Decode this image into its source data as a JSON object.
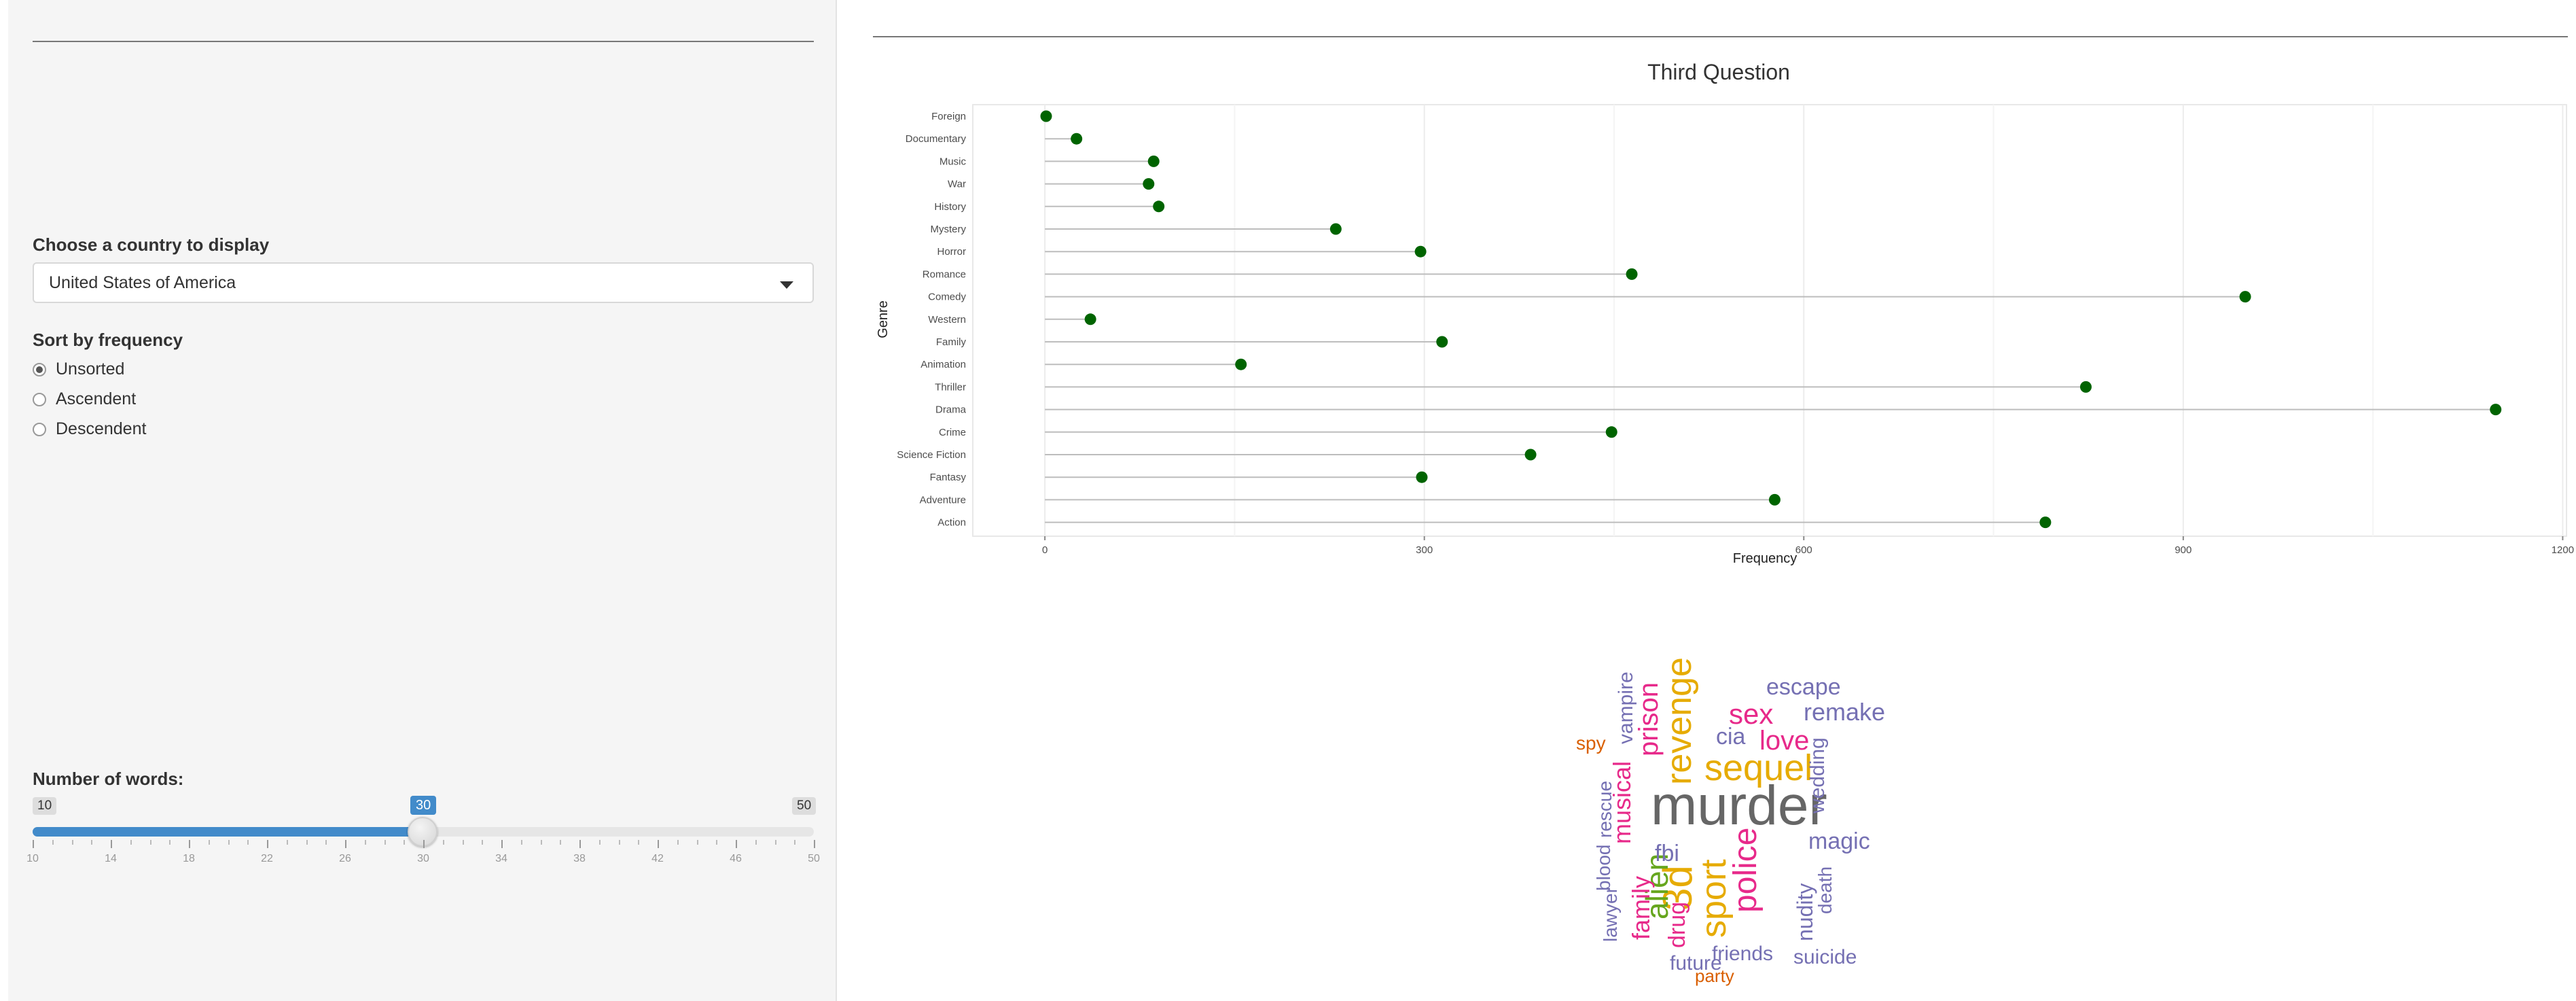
{
  "sidebar": {
    "country_label": "Choose a country to display",
    "country_value": "United States of America",
    "sort_label": "Sort by frequency",
    "sort_options": [
      {
        "label": "Unsorted",
        "selected": true
      },
      {
        "label": "Ascendent",
        "selected": false
      },
      {
        "label": "Descendent",
        "selected": false
      }
    ],
    "words_label": "Number of words:",
    "slider": {
      "min": 10,
      "max": 50,
      "value": 30,
      "min_label": "10",
      "max_label": "50",
      "value_label": "30",
      "tick_labels": [
        "10",
        "14",
        "18",
        "22",
        "26",
        "30",
        "34",
        "38",
        "42",
        "46",
        "50"
      ]
    }
  },
  "chart_data": {
    "type": "lollipop",
    "title": "Third Question",
    "xlabel": "Frequency",
    "ylabel": "Genre",
    "xlim": [
      -57,
      1203
    ],
    "xticks": [
      "0",
      "300",
      "600",
      "900",
      "1200"
    ],
    "grid": true,
    "color": "#006400",
    "categories": [
      "Foreign",
      "Documentary",
      "Music",
      "War",
      "History",
      "Mystery",
      "Horror",
      "Romance",
      "Comedy",
      "Western",
      "Family",
      "Animation",
      "Thriller",
      "Drama",
      "Crime",
      "Science Fiction",
      "Fantasy",
      "Adventure",
      "Action"
    ],
    "values": [
      1,
      25,
      86,
      82,
      90,
      230,
      297,
      464,
      949,
      36,
      314,
      155,
      823,
      1147,
      448,
      384,
      298,
      577,
      791
    ]
  },
  "wordcloud": {
    "words": [
      {
        "text": "murder",
        "color": "#666666",
        "size": 82
      },
      {
        "text": "sequel",
        "color": "#e6ab02",
        "size": 54
      },
      {
        "text": "revenge",
        "color": "#e6ab02",
        "size": 52
      },
      {
        "text": "sport",
        "color": "#e6ab02",
        "size": 52
      },
      {
        "text": "3d",
        "color": "#e6ab02",
        "size": 60
      },
      {
        "text": "police",
        "color": "#e7298a",
        "size": 48
      },
      {
        "text": "alien",
        "color": "#66a61e",
        "size": 46
      },
      {
        "text": "sex",
        "color": "#e7298a",
        "size": 42
      },
      {
        "text": "love",
        "color": "#e7298a",
        "size": 40
      },
      {
        "text": "prison",
        "color": "#e7298a",
        "size": 40
      },
      {
        "text": "musical",
        "color": "#e7298a",
        "size": 36
      },
      {
        "text": "family",
        "color": "#e7298a",
        "size": 36
      },
      {
        "text": "remake",
        "color": "#7570b3",
        "size": 36
      },
      {
        "text": "escape",
        "color": "#7570b3",
        "size": 34
      },
      {
        "text": "magic",
        "color": "#7570b3",
        "size": 34
      },
      {
        "text": "drug",
        "color": "#e7298a",
        "size": 34
      },
      {
        "text": "fbi",
        "color": "#7570b3",
        "size": 34
      },
      {
        "text": "cia",
        "color": "#7570b3",
        "size": 34
      },
      {
        "text": "wedding",
        "color": "#7570b3",
        "size": 30
      },
      {
        "text": "nudity",
        "color": "#7570b3",
        "size": 32
      },
      {
        "text": "vampire",
        "color": "#7570b3",
        "size": 30
      },
      {
        "text": "rescue",
        "color": "#7570b3",
        "size": 28
      },
      {
        "text": "blood",
        "color": "#7570b3",
        "size": 28
      },
      {
        "text": "lawyer",
        "color": "#7570b3",
        "size": 28
      },
      {
        "text": "death",
        "color": "#7570b3",
        "size": 28
      },
      {
        "text": "friends",
        "color": "#7570b3",
        "size": 30
      },
      {
        "text": "suicide",
        "color": "#7570b3",
        "size": 30
      },
      {
        "text": "future",
        "color": "#7570b3",
        "size": 30
      },
      {
        "text": "spy",
        "color": "#d95f02",
        "size": 28
      },
      {
        "text": "party",
        "color": "#d95f02",
        "size": 26
      }
    ]
  }
}
